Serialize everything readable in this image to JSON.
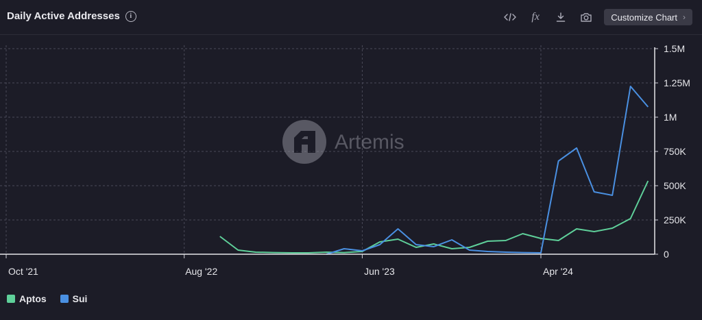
{
  "header": {
    "title": "Daily Active Addresses",
    "customize_label": "Customize Chart",
    "toolbar_icons": [
      "embed-code-icon",
      "formula-icon",
      "download-icon",
      "camera-icon"
    ]
  },
  "watermark": {
    "text": "Artemis"
  },
  "colors": {
    "aptos": "#5fd09a",
    "sui": "#4a90e2",
    "background": "#1c1c27"
  },
  "chart_data": {
    "type": "line",
    "x_ticks": [
      "Oct '21",
      "Aug '22",
      "Jun '23",
      "Apr '24"
    ],
    "x_tick_dates": [
      "2021-10-01",
      "2022-08-01",
      "2023-06-01",
      "2024-04-01"
    ],
    "y_ticks": [
      "0",
      "250K",
      "500K",
      "750K",
      "1M",
      "1.25M",
      "1.5M"
    ],
    "ylim": [
      0,
      1500000
    ],
    "xlim": [
      "2021-10-01",
      "2024-09-01"
    ],
    "grid": true,
    "legend_position": "bottom-left",
    "series": [
      {
        "name": "Aptos",
        "color": "#5fd09a",
        "points": [
          [
            "2022-10-01",
            130000
          ],
          [
            "2022-11-01",
            30000
          ],
          [
            "2022-12-01",
            15000
          ],
          [
            "2023-01-01",
            12000
          ],
          [
            "2023-02-01",
            10000
          ],
          [
            "2023-03-01",
            10000
          ],
          [
            "2023-04-01",
            15000
          ],
          [
            "2023-05-01",
            12000
          ],
          [
            "2023-06-01",
            20000
          ],
          [
            "2023-07-01",
            90000
          ],
          [
            "2023-08-01",
            110000
          ],
          [
            "2023-09-01",
            50000
          ],
          [
            "2023-10-01",
            75000
          ],
          [
            "2023-11-01",
            40000
          ],
          [
            "2023-12-01",
            50000
          ],
          [
            "2024-01-01",
            95000
          ],
          [
            "2024-02-01",
            100000
          ],
          [
            "2024-03-01",
            150000
          ],
          [
            "2024-04-01",
            115000
          ],
          [
            "2024-05-01",
            100000
          ],
          [
            "2024-06-01",
            185000
          ],
          [
            "2024-07-01",
            165000
          ],
          [
            "2024-08-01",
            190000
          ],
          [
            "2024-09-01",
            260000
          ],
          [
            "2024-10-01",
            535000
          ]
        ]
      },
      {
        "name": "Sui",
        "color": "#4a90e2",
        "points": [
          [
            "2023-04-01",
            0
          ],
          [
            "2023-05-01",
            40000
          ],
          [
            "2023-06-01",
            25000
          ],
          [
            "2023-07-01",
            70000
          ],
          [
            "2023-08-01",
            185000
          ],
          [
            "2023-09-01",
            70000
          ],
          [
            "2023-10-01",
            55000
          ],
          [
            "2023-11-01",
            105000
          ],
          [
            "2023-12-01",
            30000
          ],
          [
            "2024-01-01",
            20000
          ],
          [
            "2024-02-01",
            15000
          ],
          [
            "2024-03-01",
            12000
          ],
          [
            "2024-04-01",
            10000
          ],
          [
            "2024-05-01",
            680000
          ],
          [
            "2024-06-01",
            775000
          ],
          [
            "2024-07-01",
            455000
          ],
          [
            "2024-08-01",
            430000
          ],
          [
            "2024-09-01",
            1225000
          ],
          [
            "2024-10-01",
            1075000
          ]
        ]
      }
    ]
  }
}
